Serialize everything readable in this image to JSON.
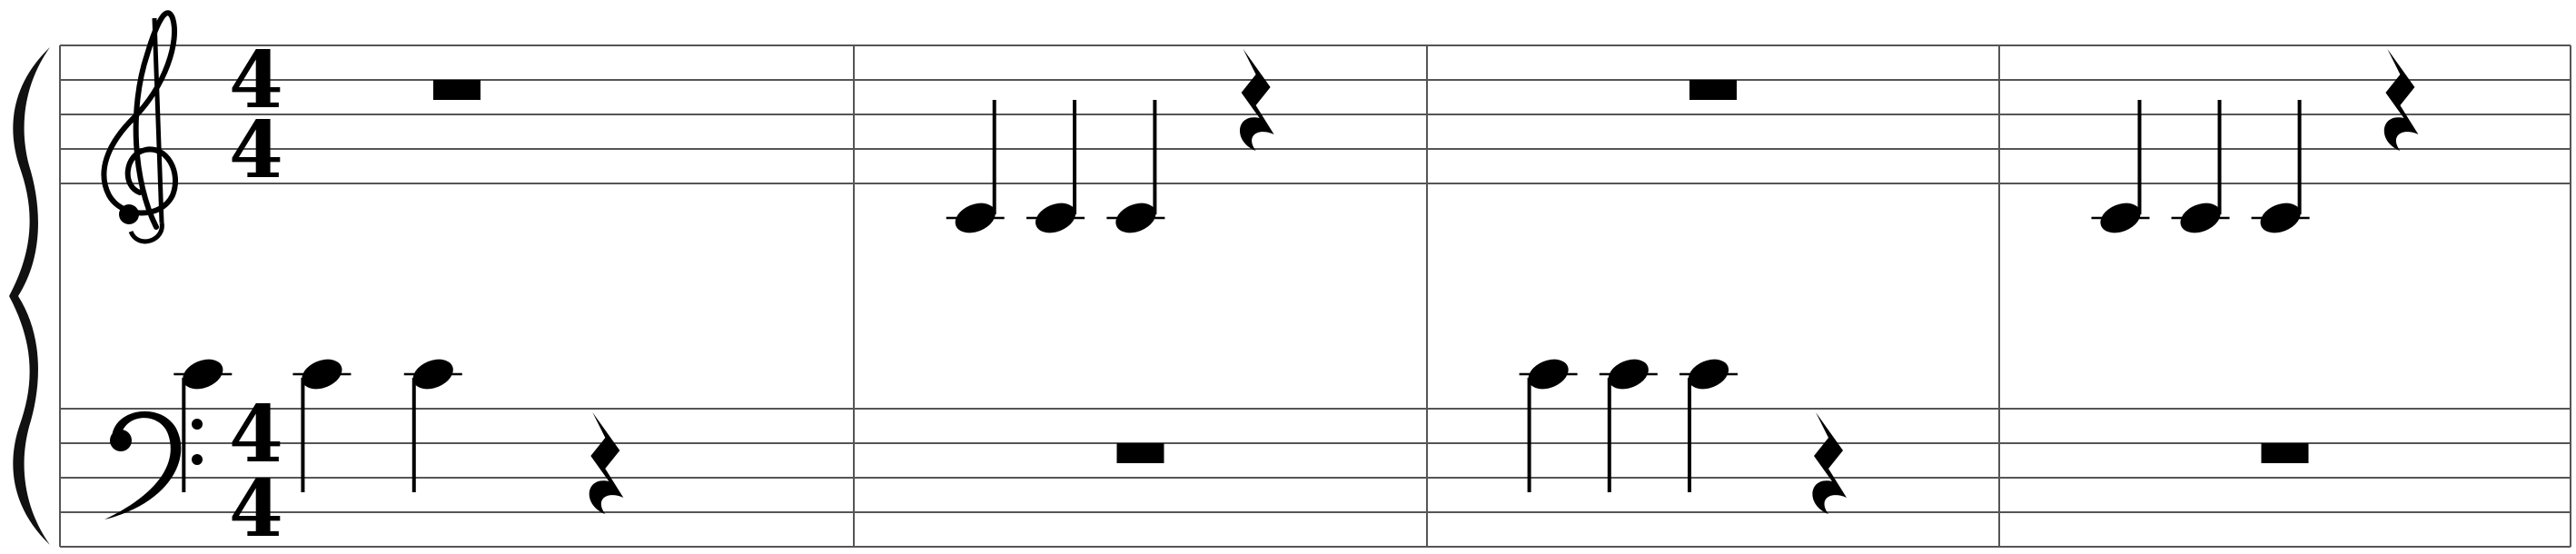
{
  "score": {
    "time_signature": {
      "numerator": "4",
      "denominator": "4"
    },
    "measure_count": 4,
    "staves": [
      {
        "clef": "treble",
        "measures": [
          [
            {
              "type": "whole-rest"
            }
          ],
          [
            {
              "type": "quarter-note",
              "pitch": "C4"
            },
            {
              "type": "quarter-note",
              "pitch": "C4"
            },
            {
              "type": "quarter-note",
              "pitch": "C4"
            },
            {
              "type": "quarter-rest"
            }
          ],
          [
            {
              "type": "whole-rest"
            }
          ],
          [
            {
              "type": "quarter-note",
              "pitch": "C4"
            },
            {
              "type": "quarter-note",
              "pitch": "C4"
            },
            {
              "type": "quarter-note",
              "pitch": "C4"
            },
            {
              "type": "quarter-rest"
            }
          ]
        ]
      },
      {
        "clef": "bass",
        "measures": [
          [
            {
              "type": "quarter-note",
              "pitch": "C4"
            },
            {
              "type": "quarter-note",
              "pitch": "C4"
            },
            {
              "type": "quarter-note",
              "pitch": "C4"
            },
            {
              "type": "quarter-rest"
            }
          ],
          [
            {
              "type": "whole-rest"
            }
          ],
          [
            {
              "type": "quarter-note",
              "pitch": "C4"
            },
            {
              "type": "quarter-note",
              "pitch": "C4"
            },
            {
              "type": "quarter-note",
              "pitch": "C4"
            },
            {
              "type": "quarter-rest"
            }
          ],
          [
            {
              "type": "whole-rest"
            }
          ]
        ]
      }
    ],
    "ink_color": "#000000",
    "staff_line_color": "#555555"
  }
}
